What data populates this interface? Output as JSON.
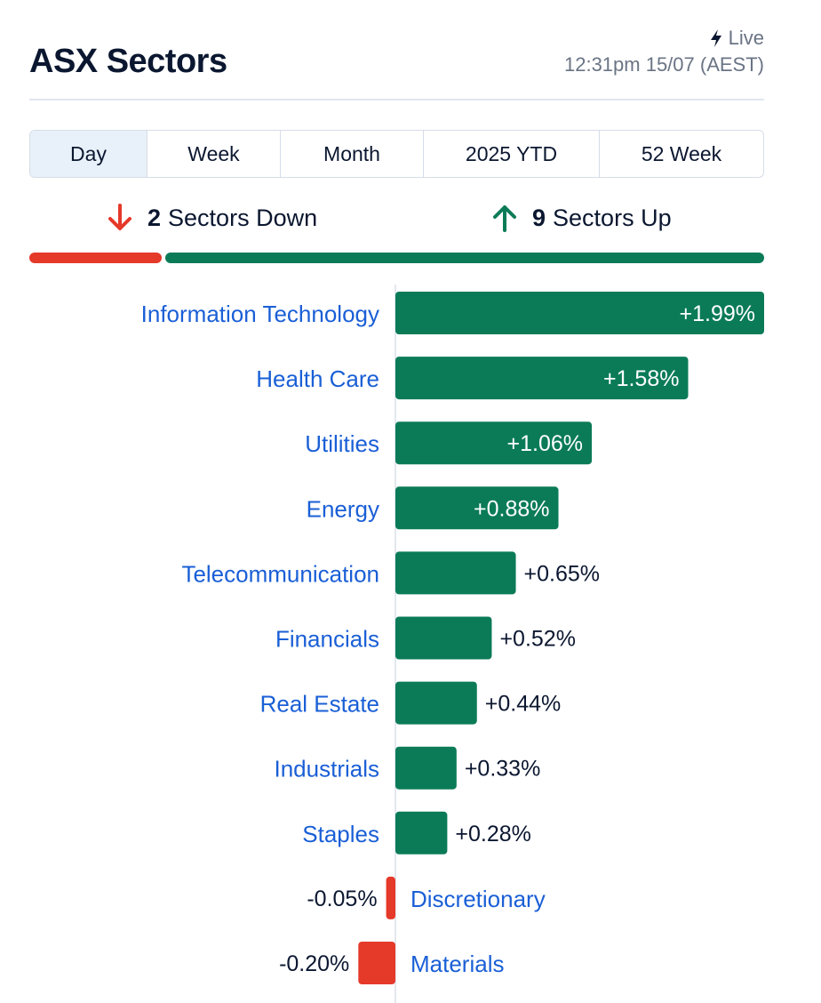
{
  "header": {
    "title": "ASX Sectors",
    "live_label": "Live",
    "timestamp": "12:31pm 15/07 (AEST)"
  },
  "tabs": [
    {
      "label": "Day",
      "active": true
    },
    {
      "label": "Week",
      "active": false
    },
    {
      "label": "Month",
      "active": false
    },
    {
      "label": "2025 YTD",
      "active": false
    },
    {
      "label": "52 Week",
      "active": false
    }
  ],
  "summary": {
    "down_count": "2",
    "down_label": "Sectors Down",
    "up_count": "9",
    "up_label": "Sectors Up"
  },
  "colors": {
    "up": "#0b7b57",
    "down": "#e5392a",
    "label_link": "#1a5fd6",
    "text": "#0b1730"
  },
  "chart_data": {
    "type": "bar",
    "orientation": "horizontal",
    "categories": [
      "Information Technology",
      "Health Care",
      "Utilities",
      "Energy",
      "Telecommunication",
      "Financials",
      "Real Estate",
      "Industrials",
      "Staples",
      "Discretionary",
      "Materials"
    ],
    "values": [
      1.99,
      1.58,
      1.06,
      0.88,
      0.65,
      0.52,
      0.44,
      0.33,
      0.28,
      -0.05,
      -0.2
    ],
    "value_labels": [
      "+1.99%",
      "+1.58%",
      "+1.06%",
      "+0.88%",
      "+0.65%",
      "+0.52%",
      "+0.44%",
      "+0.33%",
      "+0.28%",
      "-0.05%",
      "-0.20%"
    ],
    "xlim": [
      -0.2,
      1.99
    ]
  }
}
